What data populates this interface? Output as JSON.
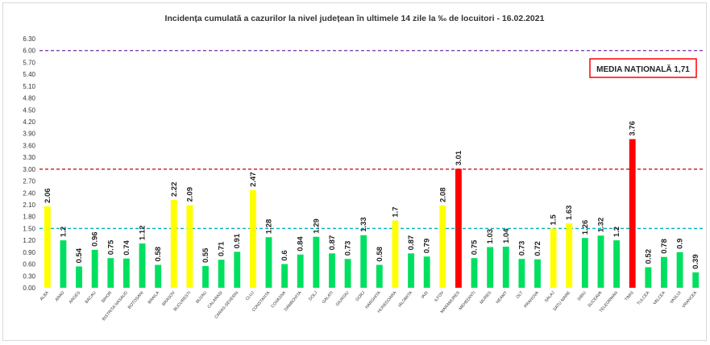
{
  "chart_data": {
    "type": "bar",
    "title": "Incidența cumulată a cazurilor la nivel județean în ultimele 14 zile la ‰ de locuitori - 16.02.2021",
    "xlabel": "",
    "ylabel": "",
    "ylim": [
      0,
      6.3
    ],
    "yticks": [
      "0.00",
      "0.30",
      "0.60",
      "0.90",
      "1.20",
      "1.50",
      "1.80",
      "2.10",
      "2.40",
      "2.70",
      "3.00",
      "3.30",
      "3.60",
      "3.90",
      "4.20",
      "4.50",
      "4.80",
      "5.10",
      "5.40",
      "5.70",
      "6.00",
      "6.30"
    ],
    "grid": false,
    "categories": [
      "ALBA",
      "ARAD",
      "ARGES",
      "BACAU",
      "BIHOR",
      "BISTRITA NASAUD",
      "BOTOSANI",
      "BRAILA",
      "BRASOV",
      "BUCURESTI",
      "BUZAU",
      "CALARASI",
      "CARAS-SEVERIN",
      "CLUJ",
      "CONSTANTA",
      "COVASNA",
      "DAMBOVITA",
      "DOLJ",
      "GALATI",
      "GIURGIU",
      "GORJ",
      "HARGHITA",
      "HUNEDOARA",
      "IALOMITA",
      "IASI",
      "ILFOV",
      "MARAMURES",
      "MEHEDINTI",
      "MURES",
      "NEAMT",
      "OLT",
      "PRAHOVA",
      "SALAJ",
      "SATU MARE",
      "SIBIU",
      "SUCEAVA",
      "TELEORMAN",
      "TIMIS",
      "TULCEA",
      "VALCEA",
      "VASLUI",
      "VRANCEA"
    ],
    "values": [
      2.06,
      1.2,
      0.54,
      0.96,
      0.75,
      0.74,
      1.12,
      0.58,
      2.22,
      2.09,
      0.55,
      0.71,
      0.91,
      2.47,
      1.28,
      0.6,
      0.84,
      1.29,
      0.87,
      0.73,
      1.33,
      0.58,
      1.7,
      0.87,
      0.79,
      2.08,
      3.01,
      0.75,
      1.03,
      1.04,
      0.73,
      0.72,
      1.5,
      1.63,
      1.26,
      1.32,
      1.2,
      3.76,
      0.52,
      0.78,
      0.9,
      0.39
    ],
    "data_labels": [
      "2.06",
      "1.2",
      "0.54",
      "0.96",
      "0.75",
      "0.74",
      "1.12",
      "0.58",
      "2.22",
      "2.09",
      "0.55",
      "0.71",
      "0.91",
      "2.47",
      "1.28",
      "0.6",
      "0.84",
      "1.29",
      "0.87",
      "0.73",
      "1.33",
      "0.58",
      "1.7",
      "0.87",
      "0.79",
      "2.08",
      "3.01",
      "0.75",
      "1.03",
      "1.04",
      "0.73",
      "0.72",
      "1.5",
      "1.63",
      "1.26",
      "1.32",
      "1.2",
      "3.76",
      "0.52",
      "0.78",
      "0.9",
      "0.39"
    ],
    "thresholds": [
      {
        "value": 6.0,
        "color": "#7030a0"
      },
      {
        "value": 3.0,
        "color": "#c00000"
      },
      {
        "value": 1.5,
        "color": "#00b0c0"
      }
    ],
    "colors": {
      "low": "#00e060",
      "mid": "#ffff00",
      "high": "#ff0000"
    },
    "legend": "top-right"
  },
  "annotation": {
    "media_label": "MEDIA NAȚIONALĂ  1,71",
    "border_color": "#ff0000"
  }
}
